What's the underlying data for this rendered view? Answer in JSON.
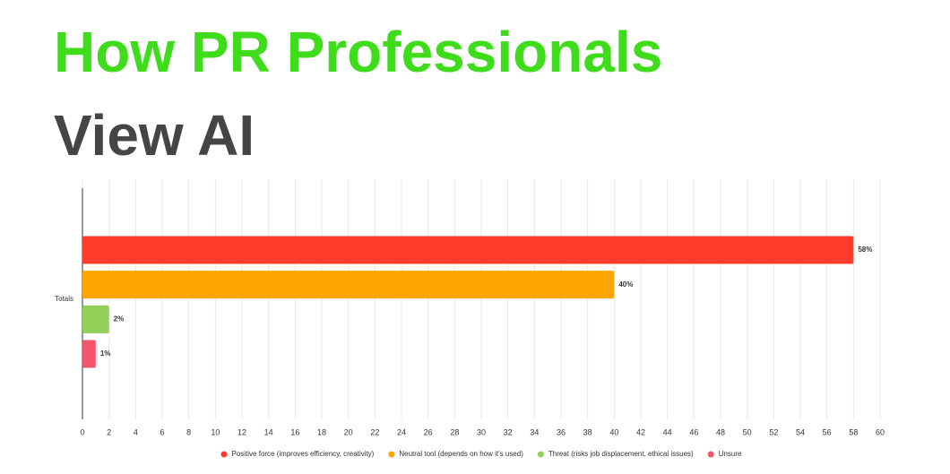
{
  "chart_data": {
    "type": "bar",
    "orientation": "horizontal",
    "title": [
      "How PR Professionals",
      "View AI"
    ],
    "categories": [
      "Totals"
    ],
    "series": [
      {
        "name": "Positive force (improves efficiency, creativity)",
        "color": "#ff3b2b",
        "values": [
          58
        ],
        "value_labels": [
          "58%"
        ]
      },
      {
        "name": "Neutral tool (depends on how it's used)",
        "color": "#ffa500",
        "values": [
          40
        ],
        "value_labels": [
          "40%"
        ]
      },
      {
        "name": "Threat (risks job displacement, ethical issues)",
        "color": "#92d05a",
        "values": [
          2
        ],
        "value_labels": [
          "2%"
        ]
      },
      {
        "name": "Unsure",
        "color": "#f2546b",
        "values": [
          1
        ],
        "value_labels": [
          "1%"
        ]
      }
    ],
    "xlim": [
      0,
      60
    ],
    "xticks": [
      0,
      2,
      4,
      6,
      8,
      10,
      12,
      14,
      16,
      18,
      20,
      22,
      24,
      26,
      28,
      30,
      32,
      34,
      36,
      38,
      40,
      42,
      44,
      46,
      48,
      50,
      52,
      54,
      56,
      58,
      60
    ],
    "grid": true,
    "legend": "bottom"
  }
}
